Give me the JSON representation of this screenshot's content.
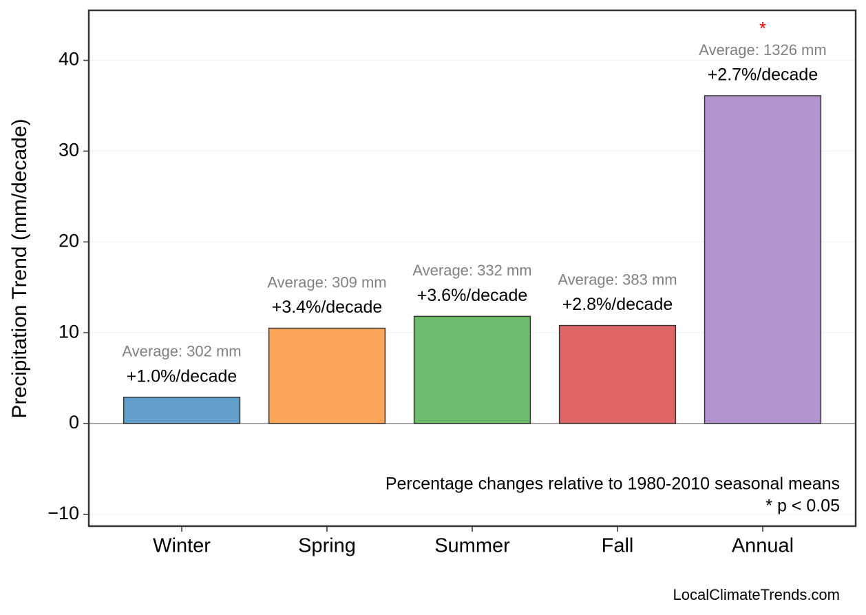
{
  "chart_data": {
    "type": "bar",
    "y_label": "Precipitation Trend (mm/decade)",
    "categories": [
      "Winter",
      "Spring",
      "Summer",
      "Fall",
      "Annual"
    ],
    "values": [
      2.9,
      10.5,
      11.8,
      10.8,
      36.1
    ],
    "colors": [
      "#629fca",
      "#fda65a",
      "#6bbd6b",
      "#e06666",
      "#b294cf"
    ],
    "percent_labels": [
      "+1.0%/decade",
      "+3.4%/decade",
      "+3.6%/decade",
      "+2.8%/decade",
      "+2.7%/decade"
    ],
    "average_labels": [
      "Average: 302 mm",
      "Average: 309 mm",
      "Average: 332 mm",
      "Average: 383 mm",
      "Average: 1326 mm"
    ],
    "significance": [
      null,
      null,
      null,
      null,
      "*"
    ],
    "ylim": [
      -11.3,
      45.5
    ],
    "yticks": [
      {
        "value": -10,
        "label": "−10"
      },
      0,
      10,
      20,
      30,
      40
    ],
    "grid": true,
    "notes": [
      "Percentage changes relative to 1980-2010 seasonal means",
      "* p < 0.05"
    ],
    "source": "LocalClimateTrends.com"
  }
}
